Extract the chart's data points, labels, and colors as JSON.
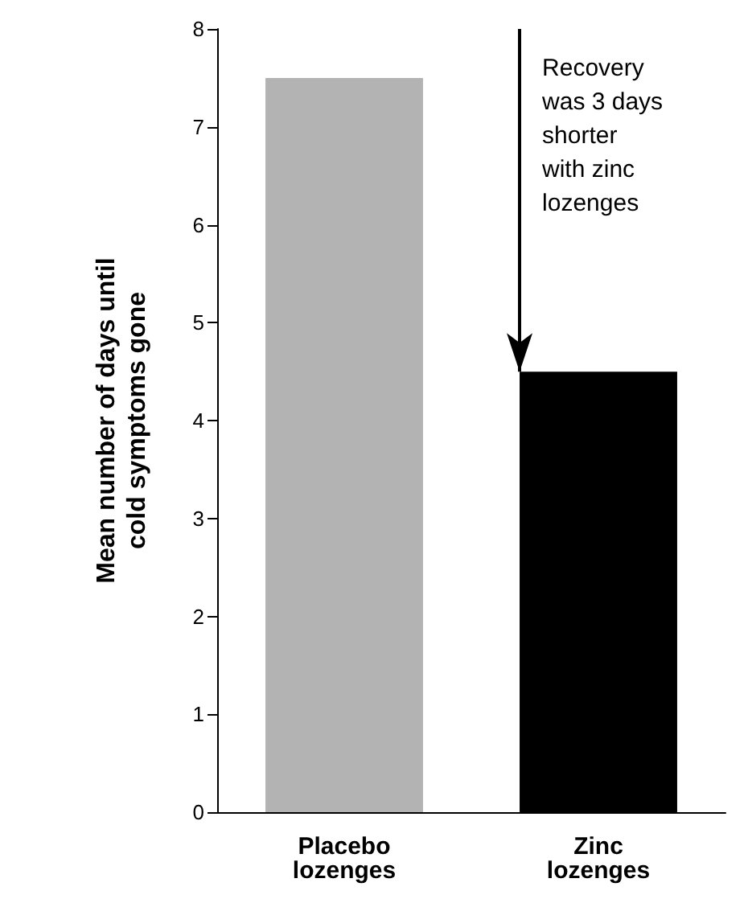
{
  "chart_data": {
    "type": "bar",
    "categories": [
      "Placebo\nlozenges",
      "Zinc\nlozenges"
    ],
    "values": [
      7.5,
      4.5
    ],
    "colors": [
      "#b3b3b3",
      "#000000"
    ],
    "ylabel": "Mean number of days until\ncold symptoms gone",
    "ylim": [
      0,
      8
    ],
    "yticks": [
      0,
      1,
      2,
      3,
      4,
      5,
      6,
      7,
      8
    ],
    "grid": false,
    "annotations": [
      "Recovery\nwas 3 days\nshorter\nwith zinc\nlozenges"
    ]
  }
}
